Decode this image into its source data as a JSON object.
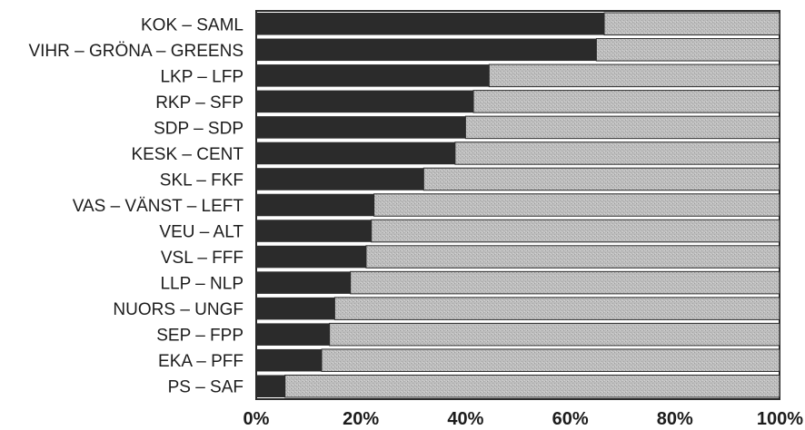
{
  "chart_data": {
    "type": "bar",
    "orientation": "horizontal",
    "stacked": true,
    "categories": [
      "KOK – SAML",
      "VIHR – GRÖNA – GREENS",
      "LKP – LFP",
      "RKP – SFP",
      "SDP – SDP",
      "KESK – CENT",
      "SKL – FKF",
      "VAS – VÄNST – LEFT",
      "VEU – ALT",
      "VSL – FFF",
      "LLP – NLP",
      "NUORS – UNGF",
      "SEP – FPP",
      "EKA – PFF",
      "PS – SAF"
    ],
    "series": [
      {
        "values": [
          66.5,
          65,
          44.5,
          41.5,
          40,
          38,
          32,
          22.5,
          22,
          21,
          18,
          15,
          14,
          12.5,
          5.5
        ]
      },
      {
        "values": [
          33.5,
          35,
          55.5,
          58.5,
          60,
          62,
          68,
          77.5,
          78,
          79,
          82,
          85,
          86,
          87.5,
          94.5
        ]
      }
    ],
    "colors": [
      "#2b2b2b",
      "#bcbcbc"
    ],
    "xlim": [
      0,
      100
    ],
    "x_ticks": [
      "0%",
      "20%",
      "40%",
      "60%",
      "80%",
      "100%"
    ],
    "title": "",
    "xlabel": "",
    "ylabel": "",
    "grid": false,
    "legend": "none"
  }
}
